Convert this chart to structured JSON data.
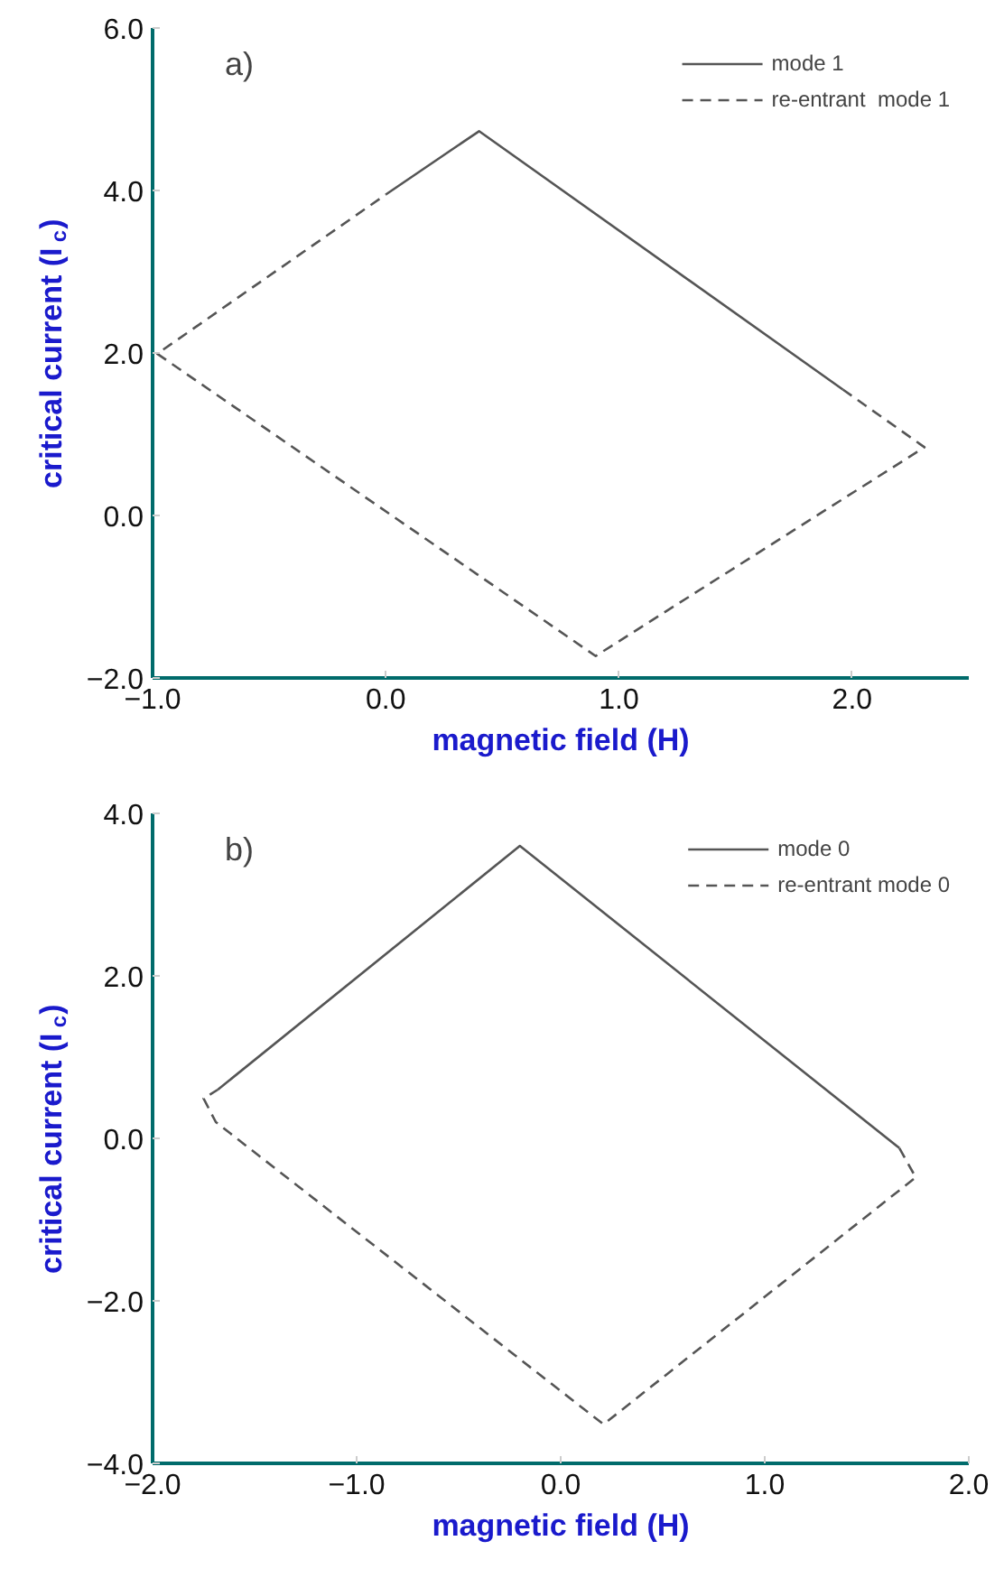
{
  "chart_data": [
    {
      "type": "line",
      "annotations": [
        "a)"
      ],
      "xlabel": "magnetic field (H)",
      "ylabel": "critical current (I$_{c}$)",
      "xlim": [
        -1.0,
        2.5
      ],
      "ylim": [
        -2.0,
        6.0
      ],
      "xticks": [
        {
          "value": -1,
          "label": "−1.0"
        },
        {
          "value": 0,
          "label": "0.0"
        },
        {
          "value": 1,
          "label": "1.0"
        },
        {
          "value": 2,
          "label": "2.0"
        }
      ],
      "yticks": [
        {
          "value": -2,
          "label": "−2.0"
        },
        {
          "value": 0,
          "label": "0.0"
        },
        {
          "value": 2,
          "label": "2.0"
        },
        {
          "value": 4,
          "label": "4.0"
        },
        {
          "value": 6,
          "label": "6.0"
        }
      ],
      "legend": "top right",
      "grid": false,
      "series": [
        {
          "name": "mode 1",
          "color": "#555555",
          "line_style": "solid",
          "x": [
            0.0,
            0.4,
            1.96
          ],
          "values": [
            3.95,
            4.73,
            1.55
          ]
        },
        {
          "name": "re-entrant  mode 1",
          "color": "#555555",
          "line_style": "dashed",
          "x": [
            1.96,
            2.31,
            0.9,
            -0.98,
            0.0
          ],
          "values": [
            1.55,
            0.84,
            -1.73,
            1.99,
            3.95
          ]
        }
      ]
    },
    {
      "type": "line",
      "annotations": [
        "b)"
      ],
      "xlabel": "magnetic field (H)",
      "ylabel": "critical current (I$_{c}$)",
      "xlim": [
        -2.0,
        2.0
      ],
      "ylim": [
        -4.0,
        4.0
      ],
      "xticks": [
        {
          "value": -2,
          "label": "−2.0"
        },
        {
          "value": -1,
          "label": "−1.0"
        },
        {
          "value": 0,
          "label": "0.0"
        },
        {
          "value": 1,
          "label": "1.0"
        },
        {
          "value": 2,
          "label": "2.0"
        }
      ],
      "yticks": [
        {
          "value": -4,
          "label": "−4.0"
        },
        {
          "value": -2,
          "label": "−2.0"
        },
        {
          "value": 0,
          "label": "0.0"
        },
        {
          "value": 2,
          "label": "2.0"
        },
        {
          "value": 4,
          "label": "4.0"
        }
      ],
      "legend": "top right",
      "grid": false,
      "series": [
        {
          "name": "mode 0",
          "color": "#555555",
          "line_style": "solid",
          "x": [
            -1.68,
            -0.2,
            1.66
          ],
          "values": [
            0.6,
            3.6,
            -0.12
          ]
        },
        {
          "name": "re-entrant mode 0",
          "color": "#555555",
          "line_style": "dashed",
          "x": [
            1.66,
            1.74,
            0.21,
            -1.69,
            -1.75,
            -1.68
          ],
          "values": [
            -0.12,
            -0.48,
            -3.52,
            0.2,
            0.49,
            0.6
          ]
        }
      ]
    }
  ]
}
